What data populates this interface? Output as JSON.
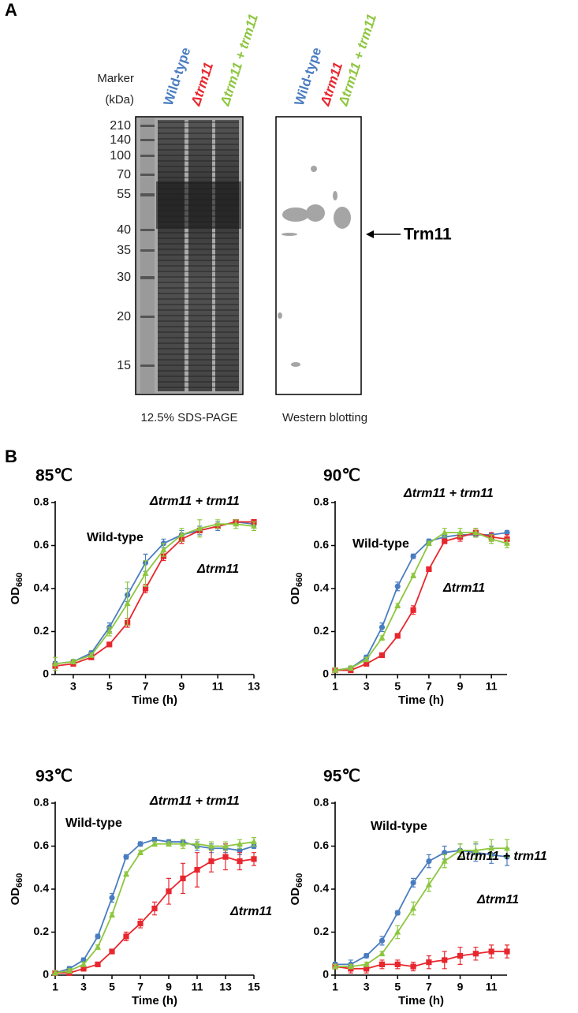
{
  "panel_a": {
    "label": "A",
    "marker_label": [
      "Marker",
      "(kDa)"
    ],
    "marker_sizes": [
      210,
      140,
      100,
      70,
      55,
      40,
      35,
      30,
      20,
      15
    ],
    "gel_lanes": [
      "Wild-type",
      "Δtrm11",
      "Δtrm11 + trm11"
    ],
    "blot_lanes": [
      "Wild-type",
      "Δtrm11",
      "Δtrm11 + trm11"
    ],
    "arrow_label": "Trm11",
    "gel_caption": "12.5% SDS-PAGE",
    "blot_caption": "Western blotting"
  },
  "panel_b": {
    "label": "B"
  },
  "chart_data": [
    {
      "type": "line",
      "title": "85℃",
      "x_label": "Time (h)",
      "y_label": "OD",
      "y_label_subscript": "660",
      "x": [
        2,
        3,
        4,
        5,
        6,
        7,
        8,
        9,
        10,
        11,
        12,
        13
      ],
      "xlim": [
        2,
        13
      ],
      "xticks": [
        3,
        5,
        7,
        9,
        11,
        13
      ],
      "ylim": [
        0,
        0.8
      ],
      "yticks": [
        0,
        0.2,
        0.4,
        0.6,
        0.8
      ],
      "series": [
        {
          "name": "Wild-type",
          "color": "#4a7dc0",
          "values": [
            0.05,
            0.06,
            0.1,
            0.22,
            0.37,
            0.52,
            0.61,
            0.65,
            0.67,
            0.69,
            0.71,
            0.7
          ],
          "errors": [
            0.01,
            0.01,
            0.01,
            0.02,
            0.03,
            0.04,
            0.02,
            0.02,
            0.02,
            0.02,
            0.01,
            0.01
          ]
        },
        {
          "name": "Δtrm11",
          "color": "#e8262e",
          "values": [
            0.04,
            0.05,
            0.08,
            0.14,
            0.24,
            0.4,
            0.55,
            0.63,
            0.67,
            0.69,
            0.71,
            0.71
          ],
          "errors": [
            0.01,
            0.01,
            0.01,
            0.01,
            0.02,
            0.02,
            0.02,
            0.02,
            0.01,
            0.01,
            0.01,
            0.01
          ]
        },
        {
          "name": "Δtrm11 + trm11",
          "color": "#8dc63f",
          "values": [
            0.05,
            0.06,
            0.09,
            0.2,
            0.33,
            0.47,
            0.58,
            0.65,
            0.68,
            0.7,
            0.7,
            0.69
          ],
          "errors": [
            0.03,
            0.01,
            0.01,
            0.02,
            0.1,
            0.06,
            0.03,
            0.03,
            0.04,
            0.02,
            0.02,
            0.02
          ]
        }
      ]
    },
    {
      "type": "line",
      "title": "90℃",
      "x_label": "Time (h)",
      "y_label": "OD",
      "y_label_subscript": "660",
      "x": [
        1,
        2,
        3,
        4,
        5,
        6,
        7,
        8,
        9,
        10,
        11,
        12
      ],
      "xlim": [
        1,
        12
      ],
      "xticks": [
        1,
        3,
        5,
        7,
        9,
        11
      ],
      "ylim": [
        0,
        0.8
      ],
      "yticks": [
        0,
        0.2,
        0.4,
        0.6,
        0.8
      ],
      "series": [
        {
          "name": "Wild-type",
          "color": "#4a7dc0",
          "values": [
            0.02,
            0.03,
            0.08,
            0.22,
            0.41,
            0.55,
            0.62,
            0.64,
            0.65,
            0.65,
            0.65,
            0.66
          ],
          "errors": [
            0.01,
            0.01,
            0.01,
            0.02,
            0.02,
            0.01,
            0.01,
            0.01,
            0.01,
            0.01,
            0.01,
            0.01
          ]
        },
        {
          "name": "Δtrm11",
          "color": "#e8262e",
          "values": [
            0.02,
            0.02,
            0.05,
            0.09,
            0.18,
            0.3,
            0.49,
            0.62,
            0.64,
            0.66,
            0.64,
            0.63
          ],
          "errors": [
            0.01,
            0.01,
            0.01,
            0.01,
            0.01,
            0.02,
            0.01,
            0.01,
            0.02,
            0.02,
            0.02,
            0.02
          ]
        },
        {
          "name": "Δtrm11 + trm11",
          "color": "#8dc63f",
          "values": [
            0.02,
            0.03,
            0.07,
            0.17,
            0.32,
            0.46,
            0.61,
            0.66,
            0.66,
            0.66,
            0.63,
            0.61
          ],
          "errors": [
            0.01,
            0.01,
            0.01,
            0.01,
            0.01,
            0.01,
            0.01,
            0.02,
            0.02,
            0.02,
            0.02,
            0.02
          ]
        }
      ]
    },
    {
      "type": "line",
      "title": "93℃",
      "x_label": "Time (h)",
      "y_label": "OD",
      "y_label_subscript": "660",
      "x": [
        1,
        2,
        3,
        4,
        5,
        6,
        7,
        8,
        9,
        10,
        11,
        12,
        13,
        14,
        15
      ],
      "xlim": [
        1,
        15
      ],
      "xticks": [
        1,
        3,
        5,
        7,
        9,
        11,
        13,
        15
      ],
      "ylim": [
        0,
        0.8
      ],
      "yticks": [
        0,
        0.2,
        0.4,
        0.6,
        0.8
      ],
      "series": [
        {
          "name": "Wild-type",
          "color": "#4a7dc0",
          "values": [
            0.01,
            0.03,
            0.07,
            0.18,
            0.36,
            0.55,
            0.61,
            0.63,
            0.62,
            0.62,
            0.6,
            0.59,
            0.59,
            0.58,
            0.6
          ],
          "errors": [
            0.01,
            0.01,
            0.01,
            0.01,
            0.02,
            0.01,
            0.01,
            0.01,
            0.01,
            0.01,
            0.02,
            0.02,
            0.02,
            0.02,
            0.01
          ]
        },
        {
          "name": "Δtrm11",
          "color": "#e8262e",
          "values": [
            0.01,
            0.01,
            0.03,
            0.05,
            0.11,
            0.18,
            0.24,
            0.31,
            0.39,
            0.45,
            0.49,
            0.53,
            0.55,
            0.53,
            0.54
          ],
          "errors": [
            0.01,
            0.01,
            0.01,
            0.01,
            0.01,
            0.02,
            0.02,
            0.03,
            0.06,
            0.07,
            0.08,
            0.05,
            0.06,
            0.04,
            0.03
          ]
        },
        {
          "name": "Δtrm11 + trm11",
          "color": "#8dc63f",
          "values": [
            0.01,
            0.02,
            0.05,
            0.13,
            0.28,
            0.47,
            0.57,
            0.61,
            0.61,
            0.61,
            0.61,
            0.6,
            0.6,
            0.61,
            0.62
          ],
          "errors": [
            0.01,
            0.01,
            0.01,
            0.01,
            0.01,
            0.01,
            0.01,
            0.01,
            0.01,
            0.02,
            0.02,
            0.02,
            0.02,
            0.02,
            0.02
          ]
        }
      ]
    },
    {
      "type": "line",
      "title": "95℃",
      "x_label": "Time (h)",
      "y_label": "OD",
      "y_label_subscript": "660",
      "x": [
        1,
        2,
        3,
        4,
        5,
        6,
        7,
        8,
        9,
        10,
        11,
        12
      ],
      "xlim": [
        1,
        12
      ],
      "xticks": [
        1,
        3,
        5,
        7,
        9,
        11
      ],
      "ylim": [
        0,
        0.8
      ],
      "yticks": [
        0,
        0.2,
        0.4,
        0.6,
        0.8
      ],
      "series": [
        {
          "name": "Wild-type",
          "color": "#4a7dc0",
          "values": [
            0.05,
            0.05,
            0.09,
            0.16,
            0.29,
            0.43,
            0.53,
            0.57,
            0.58,
            0.57,
            0.56,
            0.55
          ],
          "errors": [
            0.01,
            0.02,
            0.01,
            0.02,
            0.01,
            0.02,
            0.03,
            0.03,
            0.03,
            0.04,
            0.04,
            0.04
          ]
        },
        {
          "name": "Δtrm11",
          "color": "#e8262e",
          "values": [
            0.04,
            0.03,
            0.03,
            0.05,
            0.05,
            0.04,
            0.06,
            0.07,
            0.09,
            0.1,
            0.11,
            0.11
          ],
          "errors": [
            0.01,
            0.02,
            0.02,
            0.02,
            0.02,
            0.02,
            0.03,
            0.04,
            0.04,
            0.03,
            0.03,
            0.03
          ]
        },
        {
          "name": "Δtrm11 + trm11",
          "color": "#8dc63f",
          "values": [
            0.04,
            0.04,
            0.05,
            0.1,
            0.2,
            0.31,
            0.42,
            0.53,
            0.58,
            0.58,
            0.59,
            0.59
          ],
          "errors": [
            0.01,
            0.01,
            0.01,
            0.01,
            0.03,
            0.03,
            0.03,
            0.03,
            0.03,
            0.04,
            0.04,
            0.04
          ]
        }
      ]
    }
  ]
}
